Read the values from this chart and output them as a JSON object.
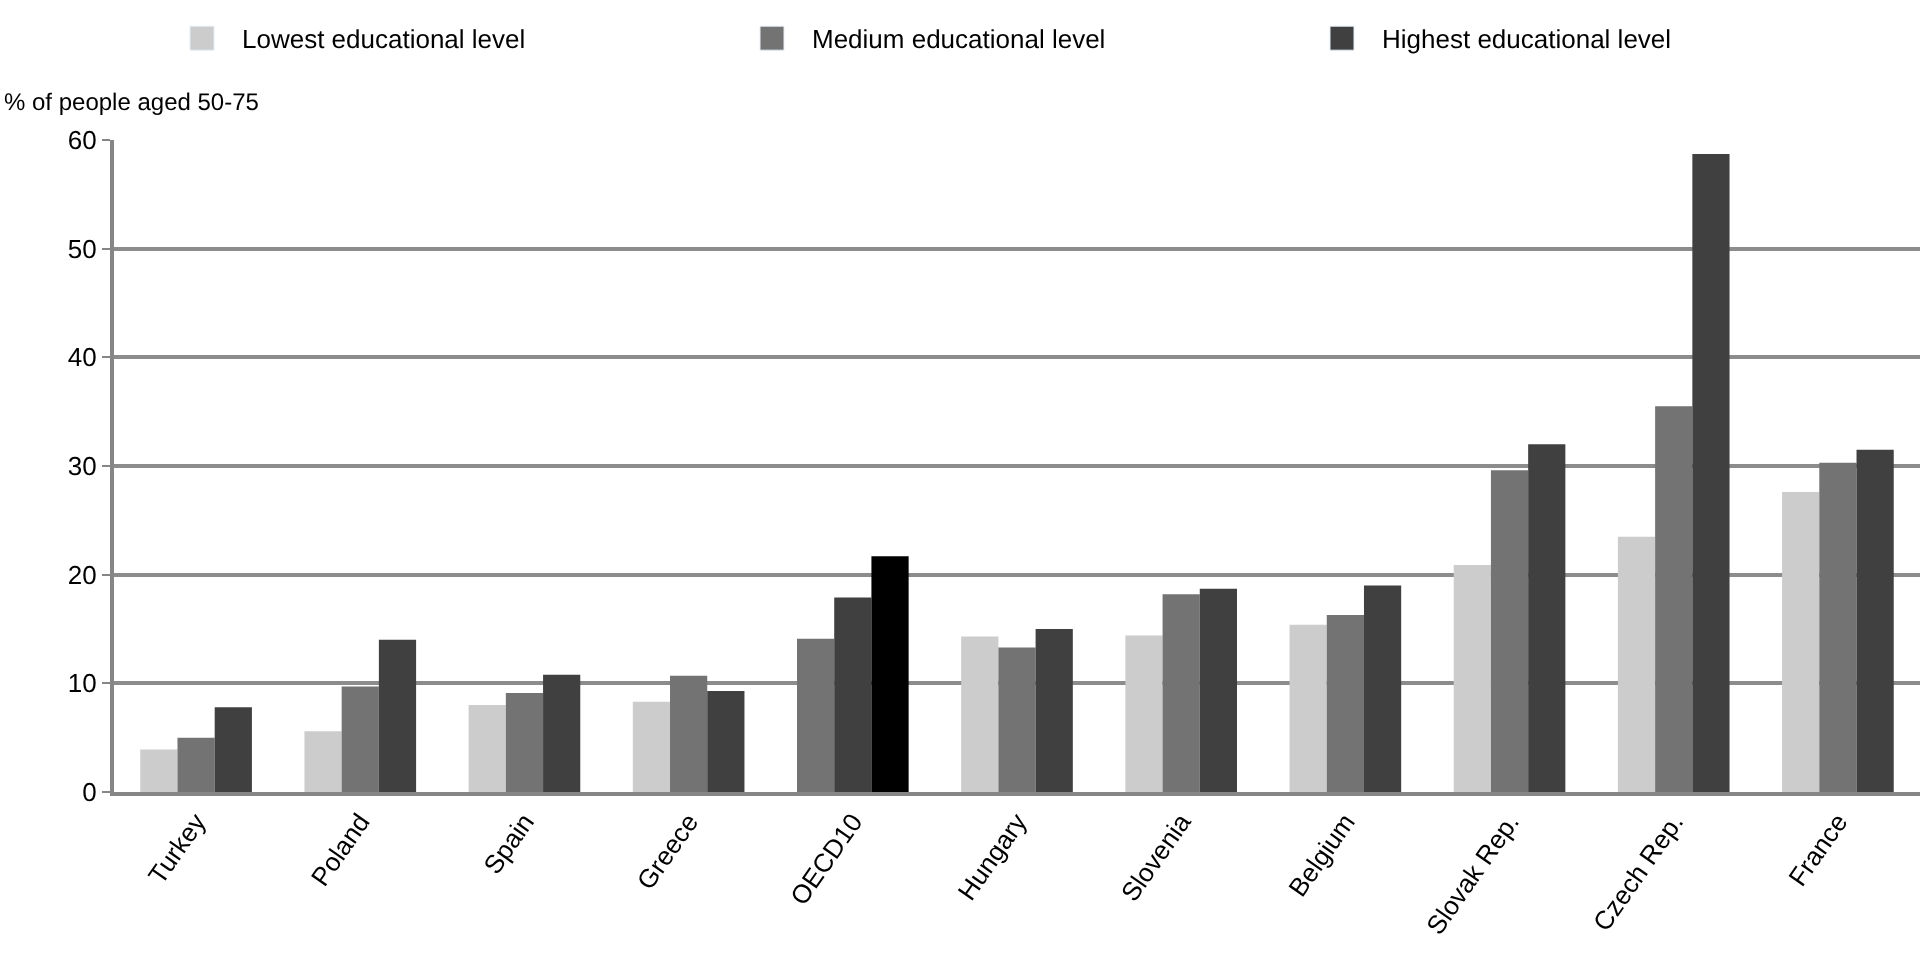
{
  "chart_data": {
    "type": "bar",
    "ylabel": "% of people aged 50-75",
    "categories": [
      "Turkey",
      "Poland",
      "Spain",
      "Greece",
      "OECD10",
      "Hungary",
      "Slovenia",
      "Belgium",
      "Slovak Rep.",
      "Czech Rep.",
      "France"
    ],
    "series": [
      {
        "name": "Lowest educational level",
        "color": "#cccccc",
        "colors": [
          "#cccccc",
          "#cccccc",
          "#cccccc",
          "#cccccc",
          "#737373",
          "#cccccc",
          "#cccccc",
          "#cccccc",
          "#cccccc",
          "#cccccc",
          "#cccccc"
        ],
        "values": [
          3.9,
          5.6,
          8.0,
          8.3,
          14.1,
          14.3,
          14.4,
          15.4,
          20.9,
          23.5,
          27.6
        ]
      },
      {
        "name": "Medium educational level",
        "color": "#737373",
        "colors": [
          "#737373",
          "#737373",
          "#737373",
          "#737373",
          "#404040",
          "#737373",
          "#737373",
          "#737373",
          "#737373",
          "#737373",
          "#737373"
        ],
        "values": [
          5.0,
          9.7,
          9.1,
          10.7,
          17.9,
          13.3,
          18.2,
          16.3,
          29.6,
          35.5,
          30.3
        ]
      },
      {
        "name": "Highest educational level",
        "color": "#404040",
        "colors": [
          "#404040",
          "#404040",
          "#404040",
          "#404040",
          "#000000",
          "#404040",
          "#404040",
          "#404040",
          "#404040",
          "#404040",
          "#404040"
        ],
        "values": [
          7.8,
          14.0,
          10.8,
          9.3,
          21.7,
          15.0,
          18.7,
          19.0,
          32.0,
          58.7,
          31.5
        ]
      }
    ],
    "ylim": [
      0,
      60
    ],
    "yticks": [
      0,
      10,
      20,
      30,
      40,
      50,
      60
    ],
    "grid": "y",
    "legend": "top"
  }
}
